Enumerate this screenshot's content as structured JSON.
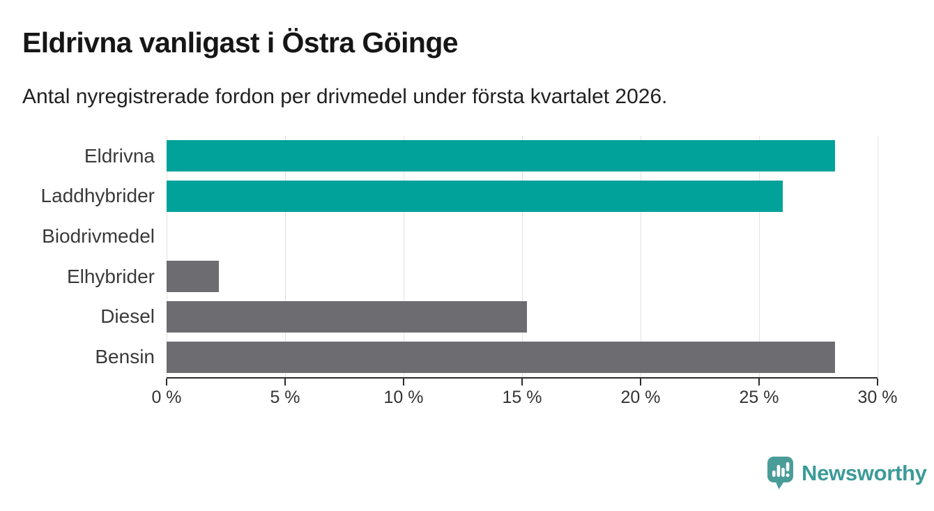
{
  "chart_data": {
    "type": "bar",
    "orientation": "horizontal",
    "title": "Eldrivna vanligast i Östra Göinge",
    "subtitle": "Antal nyregistrerade fordon per drivmedel under första kvartalet 2026.",
    "categories": [
      "Eldrivna",
      "Laddhybrider",
      "Biodrivmedel",
      "Elhybrider",
      "Diesel",
      "Bensin"
    ],
    "values": [
      28.2,
      26.0,
      0,
      2.2,
      15.2,
      28.2
    ],
    "value_unit": "%",
    "bar_colors": [
      "#00a29a",
      "#00a29a",
      "#6c6c71",
      "#6c6c71",
      "#6c6c71",
      "#6c6c71"
    ],
    "highlight_color": "#00a29a",
    "default_color": "#6c6c71",
    "xlim": [
      0,
      30
    ],
    "tick_values": [
      0,
      5,
      10,
      15,
      20,
      25,
      30
    ],
    "tick_labels": [
      "0 %",
      "5 %",
      "10 %",
      "15 %",
      "20 %",
      "25 %",
      "30 %"
    ],
    "grid": "vertical",
    "gridline_color": "#e2e2e2",
    "axis_color": "#2b2b2b",
    "legend": "none"
  },
  "footer": {
    "logo_text": "Newsworthy",
    "logo_color": "#3c9b98",
    "logo_icon_color": "#4a9c99",
    "logo_icon": "bar-chart-speech-bubble"
  }
}
